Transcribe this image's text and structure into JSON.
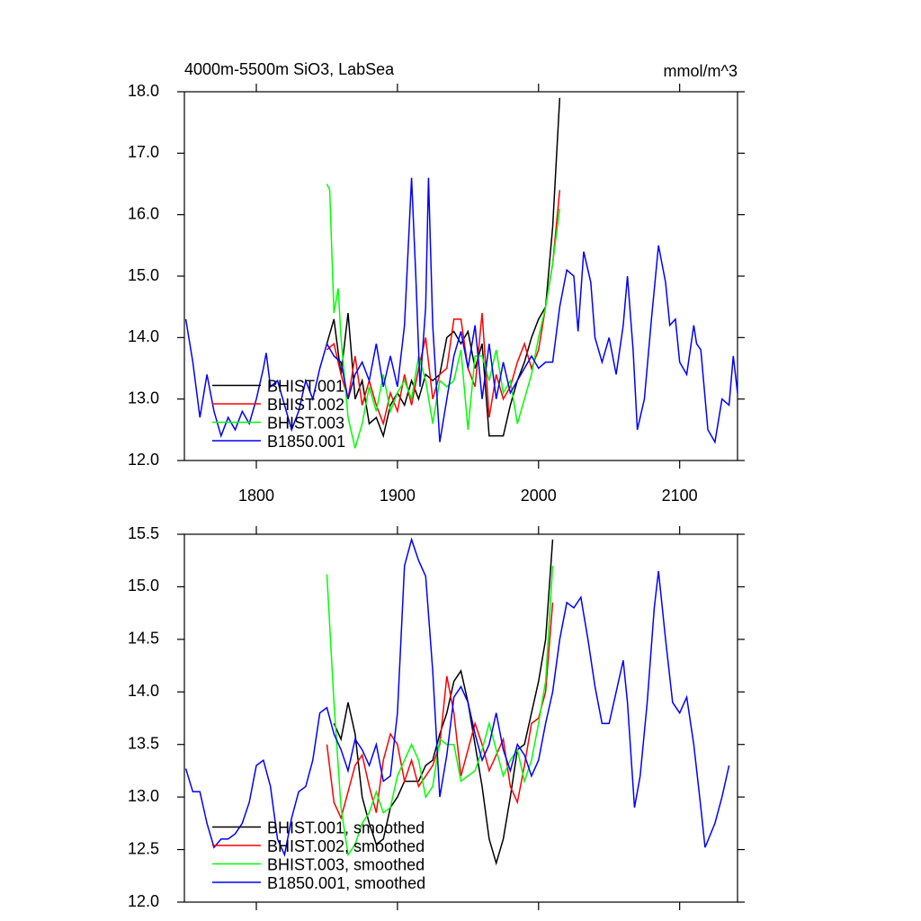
{
  "chart_data": [
    {
      "type": "line",
      "title": "4000m-5500m SiO3, LabSea",
      "units": "mmol/m^3",
      "xlim": [
        1749,
        2141
      ],
      "xticks": [
        1800,
        1900,
        2000,
        2100
      ],
      "show_xtick_labels": true,
      "ylim": [
        12,
        18
      ],
      "yticks": [
        {
          "value": 12,
          "label": "12.0"
        },
        {
          "value": 13,
          "label": "13.0"
        },
        {
          "value": 14,
          "label": "14.0"
        },
        {
          "value": 15,
          "label": "15.0"
        },
        {
          "value": 16,
          "label": "16.0"
        },
        {
          "value": 17,
          "label": "17.0"
        },
        {
          "value": 18,
          "label": "18.0"
        }
      ],
      "legend": "lower-left",
      "series": [
        {
          "name": "BHIST.001",
          "color": "#000000",
          "x": [
            1850,
            1855,
            1860,
            1865,
            1870,
            1875,
            1880,
            1885,
            1890,
            1895,
            1900,
            1905,
            1910,
            1915,
            1920,
            1925,
            1930,
            1935,
            1940,
            1945,
            1950,
            1955,
            1960,
            1965,
            1970,
            1975,
            1980,
            1985,
            1990,
            1995,
            2000,
            2005,
            2010,
            2015
          ],
          "values": [
            13.9,
            14.3,
            13.4,
            14.4,
            13.0,
            13.3,
            12.6,
            12.7,
            12.4,
            12.9,
            13.1,
            12.9,
            13.3,
            13.0,
            13.4,
            13.3,
            13.4,
            14.0,
            14.1,
            13.9,
            14.1,
            13.5,
            13.9,
            12.4,
            12.4,
            12.4,
            12.9,
            13.3,
            13.6,
            14.0,
            14.3,
            14.5,
            15.8,
            17.9
          ]
        },
        {
          "name": "BHIST.002",
          "color": "#ff0000",
          "x": [
            1850,
            1855,
            1860,
            1865,
            1870,
            1875,
            1880,
            1885,
            1890,
            1895,
            1900,
            1905,
            1910,
            1915,
            1920,
            1925,
            1930,
            1935,
            1940,
            1945,
            1950,
            1955,
            1960,
            1965,
            1970,
            1975,
            1980,
            1985,
            1990,
            1995,
            2000,
            2005,
            2010,
            2015
          ],
          "values": [
            13.8,
            13.9,
            13.4,
            13.0,
            13.7,
            12.9,
            13.3,
            12.9,
            12.6,
            13.1,
            12.8,
            13.4,
            12.9,
            13.5,
            14.0,
            13.0,
            13.4,
            13.5,
            14.3,
            14.3,
            13.5,
            13.2,
            14.4,
            12.7,
            13.4,
            13.0,
            13.2,
            13.6,
            13.9,
            13.5,
            13.8,
            14.5,
            15.2,
            16.4
          ]
        },
        {
          "name": "BHIST.003",
          "color": "#00ff00",
          "x": [
            1850,
            1852,
            1855,
            1858,
            1860,
            1865,
            1870,
            1875,
            1880,
            1885,
            1890,
            1895,
            1900,
            1905,
            1910,
            1915,
            1920,
            1925,
            1930,
            1935,
            1940,
            1945,
            1950,
            1955,
            1960,
            1965,
            1970,
            1975,
            1980,
            1985,
            1990,
            1995,
            2000,
            2005,
            2010,
            2015
          ],
          "values": [
            16.5,
            16.4,
            14.4,
            14.8,
            14.0,
            12.7,
            12.2,
            12.6,
            13.2,
            12.8,
            13.4,
            12.8,
            13.1,
            13.3,
            13.0,
            13.7,
            13.3,
            12.6,
            13.3,
            13.2,
            13.3,
            13.8,
            12.5,
            13.7,
            13.7,
            13.3,
            13.8,
            13.1,
            13.3,
            12.6,
            13.0,
            13.4,
            14.0,
            14.5,
            15.2,
            16.1
          ]
        },
        {
          "name": "B1850.001",
          "color": "#0000ff",
          "x": [
            1750,
            1755,
            1760,
            1765,
            1770,
            1775,
            1780,
            1785,
            1790,
            1795,
            1800,
            1805,
            1807,
            1810,
            1815,
            1820,
            1825,
            1830,
            1835,
            1840,
            1845,
            1850,
            1855,
            1860,
            1865,
            1870,
            1875,
            1880,
            1885,
            1890,
            1895,
            1900,
            1905,
            1910,
            1913,
            1916,
            1920,
            1922,
            1925,
            1930,
            1935,
            1940,
            1945,
            1950,
            1955,
            1960,
            1965,
            1970,
            1975,
            1980,
            1985,
            1990,
            1995,
            2000,
            2005,
            2010,
            2015,
            2020,
            2025,
            2028,
            2032,
            2037,
            2040,
            2045,
            2050,
            2055,
            2060,
            2063,
            2067,
            2070,
            2075,
            2080,
            2085,
            2090,
            2093,
            2097,
            2100,
            2105,
            2110,
            2112,
            2115,
            2120,
            2125,
            2130,
            2135,
            2138,
            2141
          ],
          "values": [
            14.3,
            13.6,
            12.7,
            13.4,
            12.8,
            12.4,
            12.7,
            12.5,
            12.8,
            12.6,
            13.0,
            13.5,
            13.75,
            13.2,
            13.3,
            12.9,
            12.5,
            12.8,
            13.3,
            13.0,
            13.5,
            13.9,
            13.7,
            13.6,
            13.0,
            13.4,
            13.6,
            13.3,
            13.9,
            13.2,
            13.7,
            13.2,
            14.2,
            16.6,
            15.0,
            13.2,
            14.5,
            16.6,
            14.2,
            12.3,
            13.0,
            13.7,
            14.1,
            13.5,
            14.2,
            13.0,
            13.9,
            13.0,
            13.6,
            13.1,
            13.3,
            13.5,
            13.7,
            13.5,
            13.6,
            13.6,
            14.5,
            15.1,
            15.0,
            14.1,
            15.4,
            14.9,
            14.0,
            13.6,
            14.0,
            13.4,
            14.2,
            15.0,
            13.8,
            12.5,
            13.0,
            14.3,
            15.5,
            14.9,
            14.2,
            14.3,
            13.6,
            13.4,
            14.2,
            13.9,
            13.8,
            12.5,
            12.3,
            13.0,
            12.9,
            13.7,
            13.1
          ]
        }
      ]
    },
    {
      "type": "line",
      "xlim": [
        1749,
        2141
      ],
      "xticks": [
        1800,
        1900,
        2000,
        2100
      ],
      "show_xtick_labels": false,
      "ylim": [
        12,
        15.5
      ],
      "yticks": [
        {
          "value": 12,
          "label": "12.0"
        },
        12.5,
        {
          "value": 13,
          "label": "13.0"
        },
        13.5,
        {
          "value": 14,
          "label": "14.0"
        },
        14.5,
        {
          "value": 15,
          "label": "15.0"
        },
        15.5
      ],
      "legend": "lower-left",
      "series": [
        {
          "name": "BHIST.001, smoothed",
          "color": "#000000",
          "x": [
            1855,
            1860,
            1865,
            1870,
            1875,
            1880,
            1885,
            1890,
            1895,
            1900,
            1905,
            1910,
            1915,
            1920,
            1925,
            1930,
            1935,
            1940,
            1945,
            1950,
            1955,
            1960,
            1965,
            1970,
            1975,
            1980,
            1985,
            1990,
            1995,
            2000,
            2005,
            2010
          ],
          "values": [
            13.7,
            13.55,
            13.9,
            13.6,
            13.0,
            12.75,
            12.55,
            12.6,
            12.9,
            13.0,
            13.15,
            13.15,
            13.15,
            13.3,
            13.35,
            13.6,
            13.8,
            14.1,
            14.2,
            13.9,
            13.5,
            13.1,
            12.6,
            12.37,
            12.6,
            13.0,
            13.45,
            13.5,
            13.8,
            14.1,
            14.5,
            15.45
          ]
        },
        {
          "name": "BHIST.002, smoothed",
          "color": "#ff0000",
          "x": [
            1850,
            1855,
            1860,
            1865,
            1870,
            1875,
            1880,
            1885,
            1890,
            1895,
            1900,
            1905,
            1910,
            1915,
            1920,
            1925,
            1930,
            1935,
            1940,
            1945,
            1950,
            1955,
            1960,
            1965,
            1970,
            1975,
            1980,
            1985,
            1990,
            1995,
            2000,
            2005,
            2010
          ],
          "values": [
            13.5,
            12.95,
            12.8,
            13.05,
            13.3,
            13.4,
            13.1,
            12.85,
            13.35,
            13.6,
            13.5,
            13.15,
            13.35,
            13.1,
            13.2,
            13.3,
            13.5,
            14.15,
            13.8,
            13.2,
            13.45,
            13.7,
            13.5,
            13.25,
            13.4,
            13.55,
            13.1,
            12.95,
            13.3,
            13.7,
            13.75,
            14.0,
            14.85
          ]
        },
        {
          "name": "BHIST.003, smoothed",
          "color": "#00ff00",
          "x": [
            1850,
            1855,
            1860,
            1865,
            1870,
            1875,
            1880,
            1885,
            1890,
            1895,
            1900,
            1905,
            1910,
            1915,
            1920,
            1925,
            1930,
            1935,
            1940,
            1945,
            1950,
            1955,
            1960,
            1965,
            1970,
            1975,
            1980,
            1985,
            1990,
            1995,
            2000,
            2005,
            2010
          ],
          "values": [
            15.12,
            13.9,
            12.9,
            12.45,
            12.55,
            12.75,
            12.85,
            13.05,
            12.85,
            12.9,
            13.2,
            13.35,
            13.5,
            13.35,
            13.0,
            13.1,
            13.55,
            13.5,
            13.5,
            13.15,
            13.2,
            13.25,
            13.45,
            13.7,
            13.45,
            13.2,
            13.35,
            13.45,
            13.15,
            13.35,
            13.7,
            14.1,
            15.2
          ]
        },
        {
          "name": "B1850.001, smoothed",
          "color": "#0000ff",
          "x": [
            1750,
            1755,
            1760,
            1765,
            1770,
            1775,
            1780,
            1785,
            1790,
            1795,
            1800,
            1805,
            1810,
            1815,
            1820,
            1825,
            1830,
            1835,
            1840,
            1845,
            1850,
            1855,
            1860,
            1865,
            1870,
            1875,
            1880,
            1885,
            1890,
            1895,
            1900,
            1905,
            1910,
            1915,
            1920,
            1925,
            1930,
            1935,
            1940,
            1945,
            1950,
            1955,
            1960,
            1965,
            1970,
            1975,
            1980,
            1985,
            1990,
            1995,
            2000,
            2005,
            2010,
            2015,
            2020,
            2025,
            2030,
            2035,
            2040,
            2045,
            2050,
            2055,
            2060,
            2063,
            2068,
            2072,
            2077,
            2082,
            2085,
            2090,
            2095,
            2100,
            2105,
            2110,
            2115,
            2118,
            2125,
            2130,
            2135
          ],
          "values": [
            13.27,
            13.05,
            13.05,
            12.75,
            12.52,
            12.6,
            12.6,
            12.65,
            12.75,
            12.95,
            13.3,
            13.35,
            13.1,
            12.6,
            12.45,
            12.8,
            13.05,
            13.1,
            13.35,
            13.8,
            13.85,
            13.6,
            13.45,
            13.25,
            13.55,
            13.45,
            13.3,
            13.5,
            13.15,
            13.2,
            13.8,
            15.2,
            15.45,
            15.25,
            15.1,
            14.2,
            13.0,
            13.4,
            13.95,
            14.05,
            13.9,
            13.6,
            13.35,
            13.5,
            13.8,
            13.45,
            13.25,
            13.5,
            13.4,
            13.2,
            13.35,
            13.7,
            14.0,
            14.5,
            14.85,
            14.8,
            14.9,
            14.5,
            14.05,
            13.7,
            13.7,
            14.0,
            14.3,
            13.9,
            12.9,
            13.2,
            13.9,
            14.8,
            15.15,
            14.5,
            13.9,
            13.8,
            13.95,
            13.5,
            12.9,
            12.52,
            12.75,
            13.0,
            13.3
          ]
        }
      ]
    }
  ]
}
